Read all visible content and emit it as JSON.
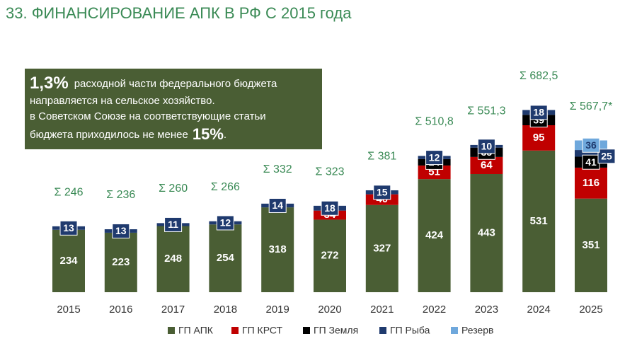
{
  "chart_data": {
    "type": "stacked-bar",
    "title": "33. ФИНАНСИРОВАНИЕ АПК В РФ С 2015 года",
    "note": {
      "lead": "1,3%",
      "line1": "расходной части федерального бюджета",
      "line2": "направляется на сельское хозяйство.",
      "line3": "в Советском Союзе на соответствующие статьи",
      "line4": "бюджета приходилось не менее",
      "emph": "15%",
      "end": "."
    },
    "categories": [
      "2015",
      "2016",
      "2017",
      "2018",
      "2019",
      "2020",
      "2021",
      "2022",
      "2023",
      "2024",
      "2025"
    ],
    "series": [
      {
        "name": "ГП АПК",
        "color": "#4a5e34",
        "values": [
          234,
          223,
          248,
          254,
          318,
          272,
          327,
          424,
          443,
          531,
          351
        ]
      },
      {
        "name": "ГП КРСТ",
        "color": "#c00000",
        "values": [
          null,
          null,
          null,
          null,
          null,
          34,
          40,
          51,
          64,
          95,
          116
        ]
      },
      {
        "name": "ГП Земля",
        "color": "#000000",
        "values": [
          null,
          null,
          null,
          null,
          null,
          null,
          null,
          24,
          35,
          39,
          41
        ]
      },
      {
        "name": "ГП Рыба",
        "color": "#1f3a6e",
        "values": [
          13,
          13,
          11,
          12,
          14,
          18,
          15,
          12,
          10,
          18,
          25
        ]
      },
      {
        "name": "Резерв",
        "color": "#6fa8dc",
        "values": [
          null,
          null,
          null,
          null,
          null,
          null,
          null,
          null,
          null,
          null,
          36
        ]
      }
    ],
    "totals": {
      "color": "#3a8a55",
      "values": [
        246,
        236,
        260,
        266,
        332,
        323,
        381,
        510.8,
        551.3,
        682.5,
        567.7
      ],
      "value_labels": [
        "Σ 246",
        "Σ 236",
        "Σ 260",
        "Σ 266",
        "Σ 332",
        "Σ 323",
        "Σ 381",
        "Σ 510,8",
        "Σ 551,3",
        "Σ 682,5",
        "Σ 567,7*"
      ]
    },
    "legend": "bottom"
  }
}
